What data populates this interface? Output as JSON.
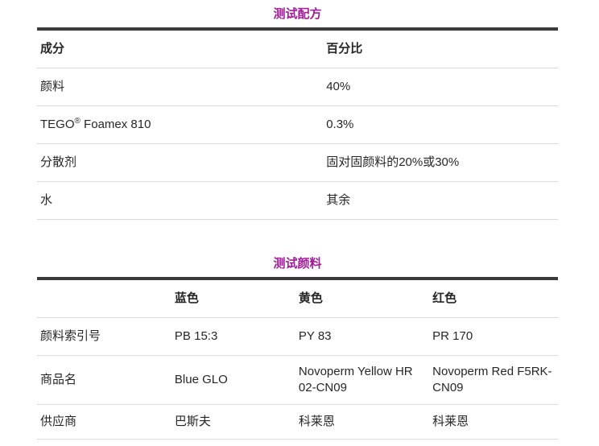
{
  "colors": {
    "accent_title": "#a21c9a",
    "heavy_border": "#3b3b3b",
    "light_border": "#d9d9d9",
    "text": "#262626",
    "background": "#ffffff"
  },
  "formula_table": {
    "title": "测试配方",
    "header": {
      "ingredient": "成分",
      "percentage": "百分比"
    },
    "rows": {
      "pigment": {
        "name": "颜料",
        "value": "40%"
      },
      "tego": {
        "name_pre": "TEGO",
        "name_sup": "®",
        "name_post": " Foamex 810",
        "value": "0.3%"
      },
      "dispersant": {
        "name": "分散剂",
        "value": "固对固颜料的20%或30%"
      },
      "water": {
        "name": "水",
        "value": "其余"
      }
    }
  },
  "pigment_table": {
    "title": "测试颜料",
    "header": {
      "label": "",
      "blue": "蓝色",
      "yellow": "黄色",
      "red": "红色"
    },
    "rows": {
      "index_number": {
        "label": "颜料索引号",
        "blue": "PB 15:3",
        "yellow": "PY 83",
        "red": "PR 170"
      },
      "trade_name": {
        "label": "商品名",
        "blue": "Blue GLO",
        "yellow": "Novoperm Yellow HR 02-CN09",
        "red": "Novoperm Red F5RK-CN09"
      },
      "supplier": {
        "label": "供应商",
        "blue": "巴斯夫",
        "yellow": "科莱恩",
        "red": "科莱恩"
      }
    }
  }
}
